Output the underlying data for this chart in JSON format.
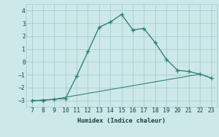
{
  "line1_x": [
    7,
    8,
    9,
    10,
    11,
    12,
    13,
    14,
    15,
    16,
    17,
    18,
    19,
    20,
    21,
    22,
    23
  ],
  "line1_y": [
    -3.0,
    -3.0,
    -2.9,
    -2.85,
    -1.1,
    0.8,
    2.7,
    3.1,
    3.7,
    2.5,
    2.6,
    1.5,
    0.2,
    -0.65,
    -0.75,
    -0.95,
    -1.25
  ],
  "line2_x": [
    7,
    8,
    9,
    10,
    11,
    12,
    13,
    14,
    15,
    16,
    17,
    18,
    19,
    20,
    21,
    22,
    23
  ],
  "line2_y": [
    -3.05,
    -2.95,
    -2.92,
    -2.75,
    -2.6,
    -2.45,
    -2.3,
    -2.15,
    -2.0,
    -1.85,
    -1.7,
    -1.55,
    -1.4,
    -1.25,
    -1.1,
    -0.95,
    -1.25
  ],
  "color": "#2e7d6e",
  "bg_color": "#cce8e8",
  "grid_color": "#aacfcf",
  "xlabel": "Humidex (Indice chaleur)",
  "yticks": [
    -3,
    -2,
    -1,
    0,
    1,
    2,
    3,
    4
  ],
  "xticks": [
    7,
    8,
    9,
    10,
    11,
    12,
    13,
    14,
    15,
    16,
    17,
    18,
    19,
    20,
    21,
    22,
    23
  ],
  "xlim": [
    6.5,
    23.5
  ],
  "ylim": [
    -3.5,
    4.5
  ]
}
